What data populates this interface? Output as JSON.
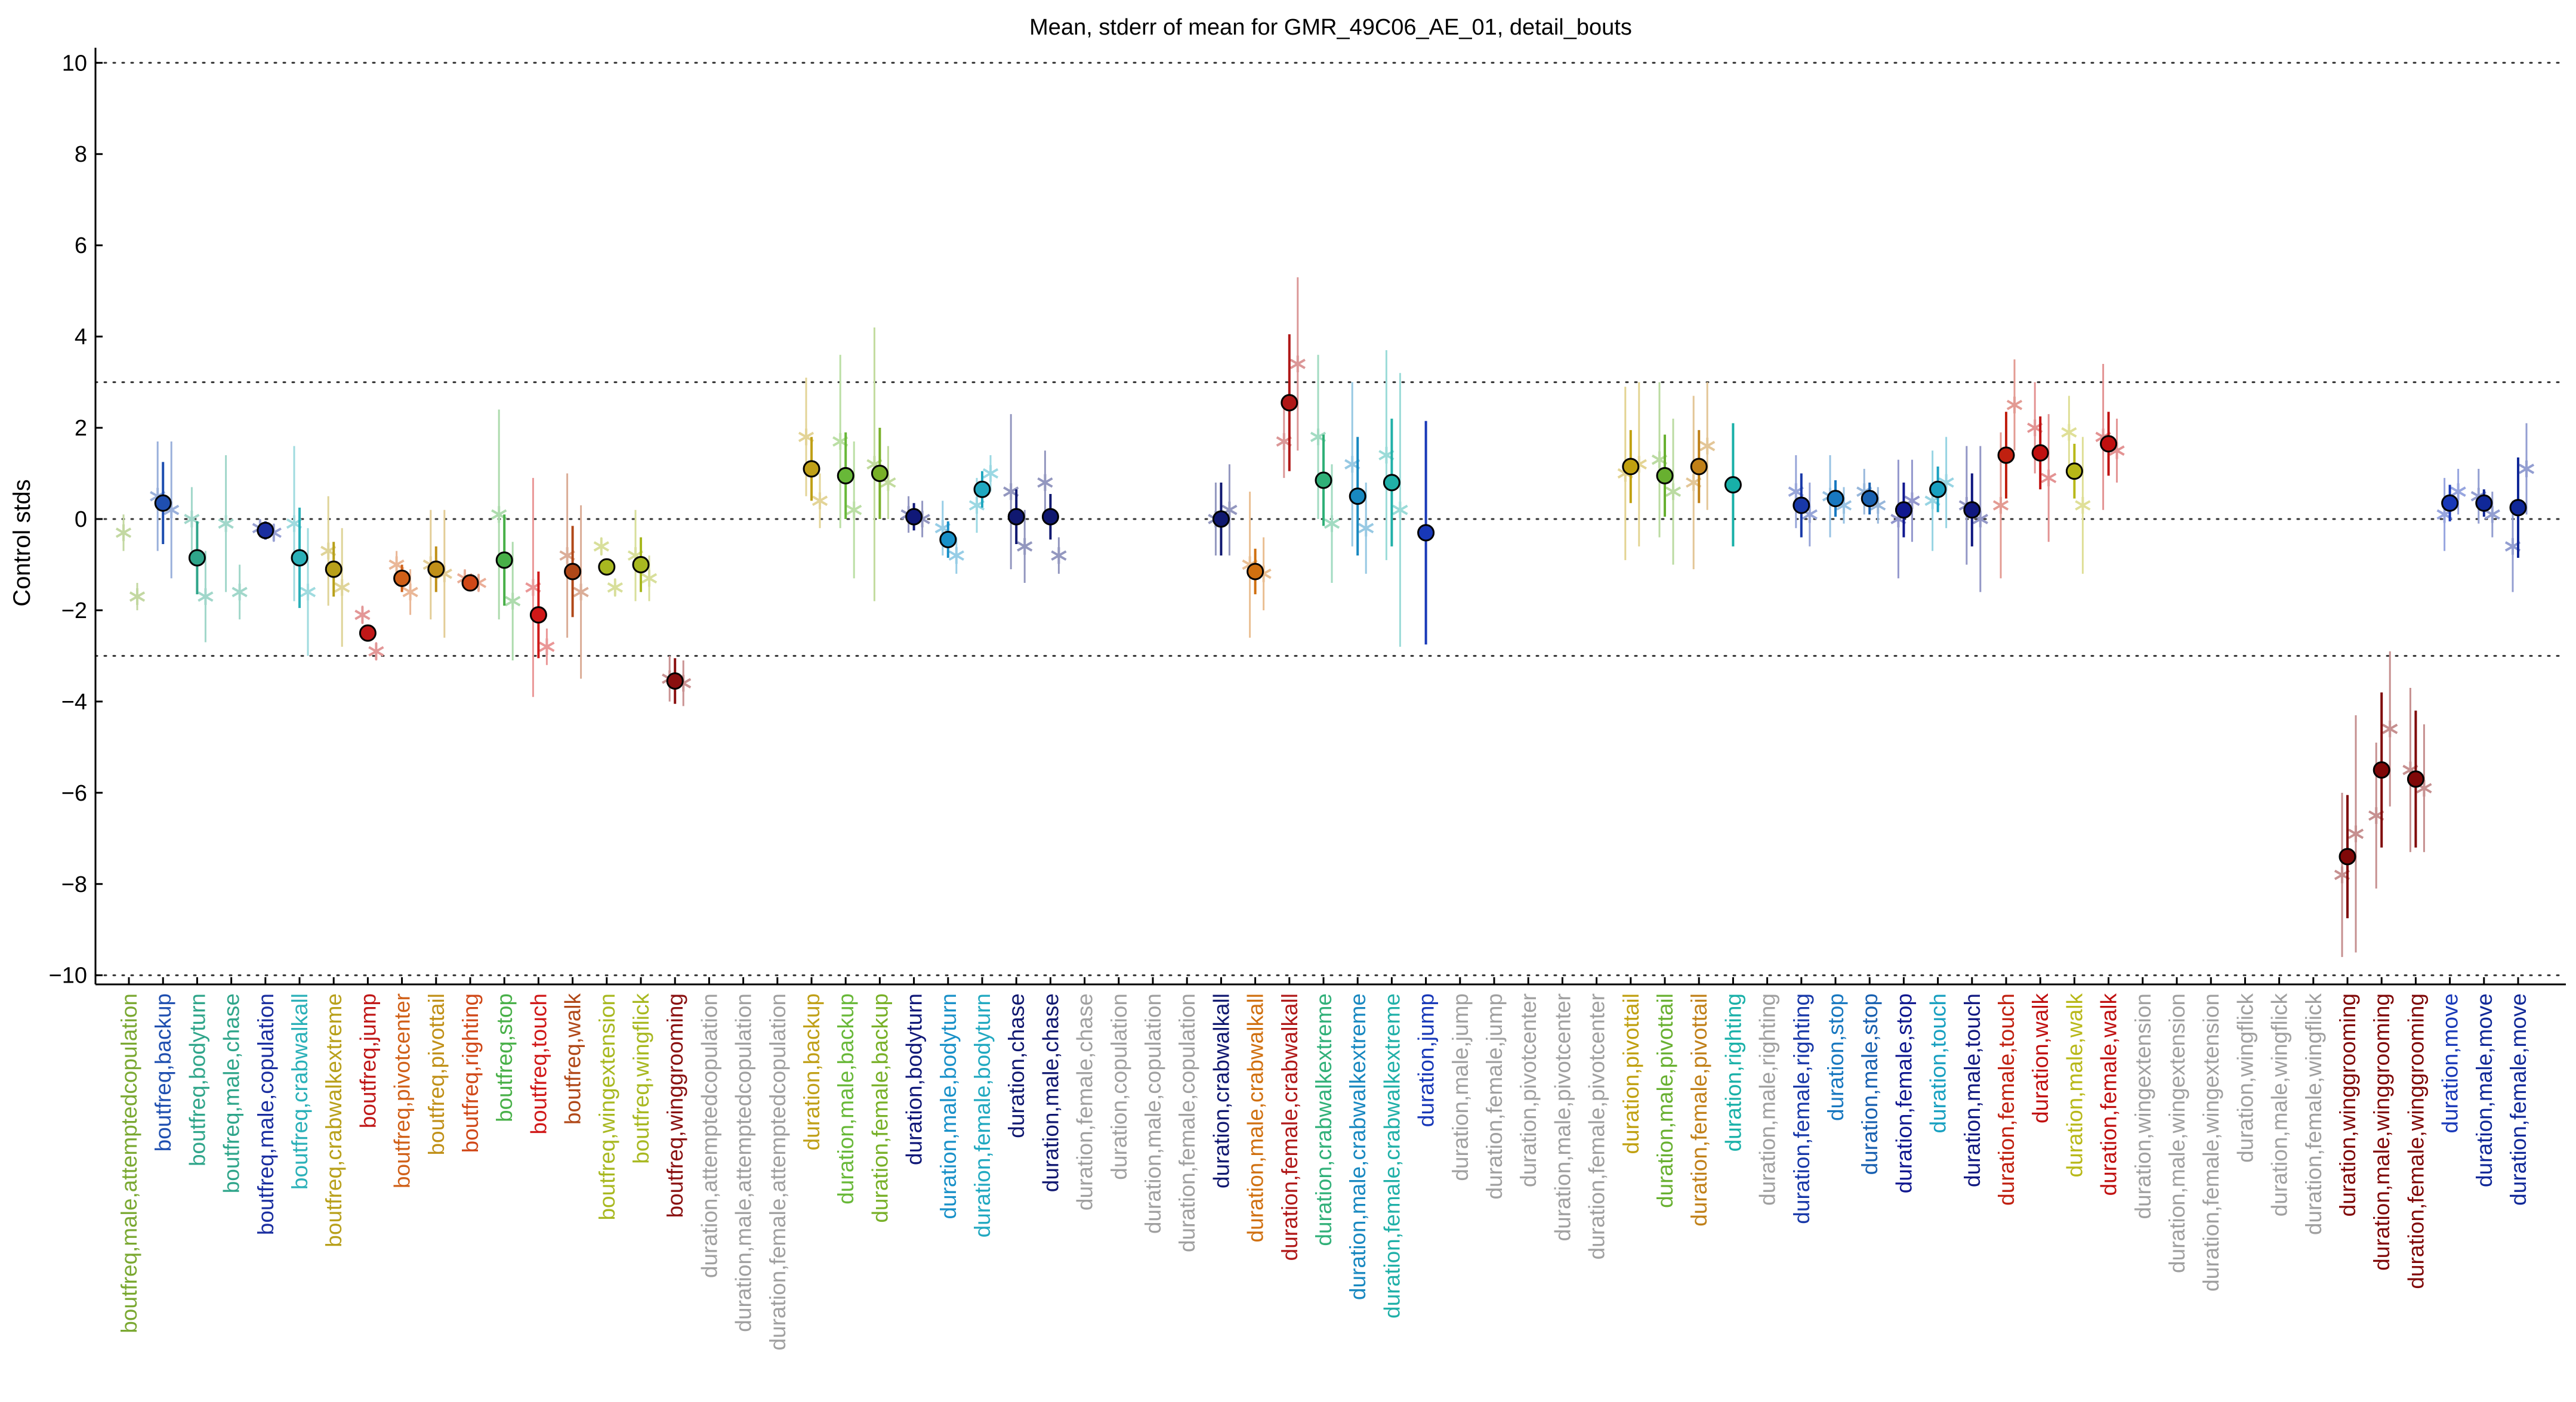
{
  "chart_data": {
    "type": "scatter",
    "title": "Mean, stderr of mean for GMR_49C06_AE_01, detail_bouts",
    "ylabel": "Control stds",
    "xlabel": "",
    "ylim": [
      -10.2,
      10.2
    ],
    "yticks": [
      -10,
      -8,
      -6,
      -4,
      -2,
      0,
      2,
      4,
      6,
      8,
      10
    ],
    "reference_lines": [
      -10,
      -3,
      0,
      3,
      10
    ],
    "grid": false,
    "legend": "none",
    "categories": [
      {
        "label": "boutfreq,male,attemptedcopulation",
        "color": "#7aa831",
        "mean": null,
        "sem": null,
        "marker": "star",
        "point": -0.3,
        "point_err": 0.4,
        "point2": -1.7,
        "point2_err": 0.3
      },
      {
        "label": "boutfreq,backup",
        "color": "#1f4fb0",
        "mean": 0.35,
        "sem": 0.9,
        "marker": "circle",
        "point": 0.5,
        "point_err": 1.2,
        "point2": 0.2,
        "point2_err": 1.5
      },
      {
        "label": "boutfreq,bodyturn",
        "color": "#2fa58a",
        "mean": -0.85,
        "sem": 0.8,
        "marker": "circle",
        "point": 0.0,
        "point_err": 0.7,
        "point2": -1.7,
        "point2_err": 1.0
      },
      {
        "label": "boutfreq,male,chase",
        "color": "#2fa58a",
        "mean": null,
        "sem": null,
        "marker": "star",
        "point": -0.1,
        "point_err": 1.5,
        "point2": -1.6,
        "point2_err": 0.6
      },
      {
        "label": "boutfreq,male,copulation",
        "color": "#1a2ea0",
        "mean": -0.25,
        "sem": 0.2,
        "marker": "circle",
        "point": -0.2,
        "point_err": 0.2,
        "point2": -0.3,
        "point2_err": 0.2
      },
      {
        "label": "boutfreq,crabwalkall",
        "color": "#2ab0b8",
        "mean": -0.85,
        "sem": 1.1,
        "marker": "circle",
        "point": -0.1,
        "point_err": 1.7,
        "point2": -1.6,
        "point2_err": 1.4
      },
      {
        "label": "boutfreq,crabwalkextreme",
        "color": "#b8a01a",
        "mean": -1.1,
        "sem": 0.6,
        "marker": "circle",
        "point": -0.7,
        "point_err": 1.2,
        "point2": -1.5,
        "point2_err": 1.3
      },
      {
        "label": "boutfreq,jump",
        "color": "#c01818",
        "mean": -2.5,
        "sem": 0.15,
        "marker": "circle",
        "point": -2.1,
        "point_err": 0.2,
        "point2": -2.9,
        "point2_err": 0.2
      },
      {
        "label": "boutfreq,pivotcenter",
        "color": "#d06018",
        "mean": -1.3,
        "sem": 0.3,
        "marker": "circle",
        "point": -1.0,
        "point_err": 0.3,
        "point2": -1.6,
        "point2_err": 0.5
      },
      {
        "label": "boutfreq,pivottail",
        "color": "#c09018",
        "mean": -1.1,
        "sem": 0.5,
        "marker": "circle",
        "point": -1.0,
        "point_err": 1.2,
        "point2": -1.2,
        "point2_err": 1.4
      },
      {
        "label": "boutfreq,righting",
        "color": "#d04818",
        "mean": -1.4,
        "sem": 0.15,
        "marker": "circle",
        "point": -1.3,
        "point_err": 0.2,
        "point2": -1.4,
        "point2_err": 0.2
      },
      {
        "label": "boutfreq,stop",
        "color": "#48b048",
        "mean": -0.9,
        "sem": 1.0,
        "marker": "circle",
        "point": 0.1,
        "point_err": 2.3,
        "point2": -1.8,
        "point2_err": 1.3
      },
      {
        "label": "boutfreq,touch",
        "color": "#d01818",
        "mean": -2.1,
        "sem": 0.95,
        "marker": "circle",
        "point": -1.5,
        "point_err": 2.4,
        "point2": -2.8,
        "point2_err": 0.4
      },
      {
        "label": "boutfreq,walk",
        "color": "#b04818",
        "mean": -1.15,
        "sem": 1.0,
        "marker": "circle",
        "point": -0.8,
        "point_err": 1.8,
        "point2": -1.6,
        "point2_err": 1.9
      },
      {
        "label": "boutfreq,wingextension",
        "color": "#a8b820",
        "mean": -1.05,
        "sem": 0.1,
        "marker": "circle",
        "point": -0.6,
        "point_err": 0.2,
        "point2": -1.5,
        "point2_err": 0.2
      },
      {
        "label": "boutfreq,wingflick",
        "color": "#a8b820",
        "mean": -1.0,
        "sem": 0.6,
        "marker": "circle",
        "point": -0.8,
        "point_err": 1.0,
        "point2": -1.3,
        "point2_err": 0.5
      },
      {
        "label": "boutfreq,winggrooming",
        "color": "#8a1010",
        "mean": -3.55,
        "sem": 0.5,
        "marker": "circle",
        "point": -3.5,
        "point_err": 0.5,
        "point2": -3.6,
        "point2_err": 0.5
      },
      {
        "label": "duration,attemptedcopulation",
        "color": "#a0a0a0",
        "mean": null,
        "sem": null
      },
      {
        "label": "duration,male,attemptedcopulation",
        "color": "#a0a0a0",
        "mean": null,
        "sem": null
      },
      {
        "label": "duration,female,attemptedcopulation",
        "color": "#a0a0a0",
        "mean": null,
        "sem": null
      },
      {
        "label": "duration,backup",
        "color": "#c0a018",
        "mean": 1.1,
        "sem": 0.7,
        "marker": "circle",
        "point": 1.8,
        "point_err": 1.3,
        "point2": 0.4,
        "point2_err": 0.6
      },
      {
        "label": "duration,male,backup",
        "color": "#68b838",
        "mean": 0.95,
        "sem": 0.95,
        "marker": "circle",
        "point": 1.7,
        "point_err": 1.9,
        "point2": 0.2,
        "point2_err": 1.5
      },
      {
        "label": "duration,female,backup",
        "color": "#78b028",
        "mean": 1.0,
        "sem": 1.0,
        "marker": "circle",
        "point": 1.2,
        "point_err": 3.0,
        "point2": 0.8,
        "point2_err": 0.8
      },
      {
        "label": "duration,bodyturn",
        "color": "#101878",
        "mean": 0.05,
        "sem": 0.3,
        "marker": "circle",
        "point": 0.1,
        "point_err": 0.4,
        "point2": 0.0,
        "point2_err": 0.4
      },
      {
        "label": "duration,male,bodyturn",
        "color": "#1890c8",
        "mean": -0.45,
        "sem": 0.4,
        "marker": "circle",
        "point": -0.2,
        "point_err": 0.6,
        "point2": -0.8,
        "point2_err": 0.4
      },
      {
        "label": "duration,female,bodyturn",
        "color": "#20a8c0",
        "mean": 0.65,
        "sem": 0.4,
        "marker": "circle",
        "point": 0.3,
        "point_err": 0.6,
        "point2": 1.0,
        "point2_err": 0.4
      },
      {
        "label": "duration,chase",
        "color": "#101870",
        "mean": 0.05,
        "sem": 0.6,
        "marker": "circle",
        "point": 0.6,
        "point_err": 1.7,
        "point2": -0.6,
        "point2_err": 0.8
      },
      {
        "label": "duration,male,chase",
        "color": "#101870",
        "mean": 0.05,
        "sem": 0.5,
        "marker": "circle",
        "point": 0.8,
        "point_err": 0.7,
        "point2": -0.8,
        "point2_err": 0.4
      },
      {
        "label": "duration,female,chase",
        "color": "#a0a0a0",
        "mean": null,
        "sem": null
      },
      {
        "label": "duration,copulation",
        "color": "#a0a0a0",
        "mean": null,
        "sem": null
      },
      {
        "label": "duration,male,copulation",
        "color": "#a0a0a0",
        "mean": null,
        "sem": null
      },
      {
        "label": "duration,female,copulation",
        "color": "#a0a0a0",
        "mean": null,
        "sem": null
      },
      {
        "label": "duration,crabwalkall",
        "color": "#101870",
        "mean": 0.0,
        "sem": 0.8,
        "marker": "circle",
        "point": 0.0,
        "point_err": 0.8,
        "point2": 0.2,
        "point2_err": 1.0
      },
      {
        "label": "duration,male,crabwalkall",
        "color": "#d07010",
        "mean": -1.15,
        "sem": 0.5,
        "marker": "circle",
        "point": -1.0,
        "point_err": 1.6,
        "point2": -1.2,
        "point2_err": 0.8
      },
      {
        "label": "duration,female,crabwalkall",
        "color": "#b01818",
        "mean": 2.55,
        "sem": 1.5,
        "marker": "circle",
        "point": 1.7,
        "point_err": 0.8,
        "point2": 3.4,
        "point2_err": 1.9
      },
      {
        "label": "duration,crabwalkextreme",
        "color": "#30b078",
        "mean": 0.85,
        "sem": 1.0,
        "marker": "circle",
        "point": 1.8,
        "point_err": 1.8,
        "point2": -0.1,
        "point2_err": 1.3
      },
      {
        "label": "duration,male,crabwalkextreme",
        "color": "#1888c0",
        "mean": 0.5,
        "sem": 1.3,
        "marker": "circle",
        "point": 1.2,
        "point_err": 1.8,
        "point2": -0.2,
        "point2_err": 1.0
      },
      {
        "label": "duration,female,crabwalkextreme",
        "color": "#20b0a8",
        "mean": 0.8,
        "sem": 1.4,
        "marker": "circle",
        "point": 1.4,
        "point_err": 2.3,
        "point2": 0.2,
        "point2_err": 3.0
      },
      {
        "label": "duration,jump",
        "color": "#1838b8",
        "mean": -0.3,
        "sem": 2.45,
        "marker": "circle",
        "point": null,
        "point_err": null,
        "point2": null,
        "point2_err": null
      },
      {
        "label": "duration,male,jump",
        "color": "#a0a0a0",
        "mean": null,
        "sem": null
      },
      {
        "label": "duration,female,jump",
        "color": "#a0a0a0",
        "mean": null,
        "sem": null
      },
      {
        "label": "duration,pivotcenter",
        "color": "#a0a0a0",
        "mean": null,
        "sem": null
      },
      {
        "label": "duration,male,pivotcenter",
        "color": "#a0a0a0",
        "mean": null,
        "sem": null
      },
      {
        "label": "duration,female,pivotcenter",
        "color": "#a0a0a0",
        "mean": null,
        "sem": null
      },
      {
        "label": "duration,pivottail",
        "color": "#c0a010",
        "mean": 1.15,
        "sem": 0.8,
        "marker": "circle",
        "point": 1.0,
        "point_err": 1.9,
        "point2": 1.2,
        "point2_err": 1.8
      },
      {
        "label": "duration,male,pivottail",
        "color": "#68b030",
        "mean": 0.95,
        "sem": 0.9,
        "marker": "circle",
        "point": 1.3,
        "point_err": 1.7,
        "point2": 0.6,
        "point2_err": 1.6
      },
      {
        "label": "duration,female,pivottail",
        "color": "#c08018",
        "mean": 1.15,
        "sem": 0.8,
        "marker": "circle",
        "point": 0.8,
        "point_err": 1.9,
        "point2": 1.6,
        "point2_err": 1.4
      },
      {
        "label": "duration,righting",
        "color": "#18b0a8",
        "mean": 0.75,
        "sem": 1.35,
        "marker": "circle",
        "point": null,
        "point_err": null,
        "point2": null,
        "point2_err": null
      },
      {
        "label": "duration,male,righting",
        "color": "#a0a0a0",
        "mean": null,
        "sem": null
      },
      {
        "label": "duration,female,righting",
        "color": "#1838a8",
        "mean": 0.3,
        "sem": 0.7,
        "marker": "circle",
        "point": 0.6,
        "point_err": 0.8,
        "point2": 0.1,
        "point2_err": 0.7
      },
      {
        "label": "duration,stop",
        "color": "#1878c0",
        "mean": 0.45,
        "sem": 0.4,
        "marker": "circle",
        "point": 0.5,
        "point_err": 0.9,
        "point2": 0.3,
        "point2_err": 0.4
      },
      {
        "label": "duration,male,stop",
        "color": "#1860b0",
        "mean": 0.45,
        "sem": 0.35,
        "marker": "circle",
        "point": 0.6,
        "point_err": 0.5,
        "point2": 0.3,
        "point2_err": 0.4
      },
      {
        "label": "duration,female,stop",
        "color": "#101890",
        "mean": 0.2,
        "sem": 0.6,
        "marker": "circle",
        "point": 0.0,
        "point_err": 1.3,
        "point2": 0.4,
        "point2_err": 0.9
      },
      {
        "label": "duration,touch",
        "color": "#18a0c0",
        "mean": 0.65,
        "sem": 0.5,
        "marker": "circle",
        "point": 0.4,
        "point_err": 1.1,
        "point2": 0.8,
        "point2_err": 1.0
      },
      {
        "label": "duration,male,touch",
        "color": "#101880",
        "mean": 0.2,
        "sem": 0.8,
        "marker": "circle",
        "point": 0.3,
        "point_err": 1.3,
        "point2": 0.0,
        "point2_err": 1.6
      },
      {
        "label": "duration,female,touch",
        "color": "#c02010",
        "mean": 1.4,
        "sem": 0.95,
        "marker": "circle",
        "point": 0.3,
        "point_err": 1.6,
        "point2": 2.5,
        "point2_err": 1.0
      },
      {
        "label": "duration,walk",
        "color": "#c01010",
        "mean": 1.45,
        "sem": 0.8,
        "marker": "circle",
        "point": 2.0,
        "point_err": 1.0,
        "point2": 0.9,
        "point2_err": 1.4
      },
      {
        "label": "duration,male,walk",
        "color": "#b8b818",
        "mean": 1.05,
        "sem": 0.6,
        "marker": "circle",
        "point": 1.9,
        "point_err": 0.8,
        "point2": 0.3,
        "point2_err": 1.5
      },
      {
        "label": "duration,female,walk",
        "color": "#c01010",
        "mean": 1.65,
        "sem": 0.7,
        "marker": "circle",
        "point": 1.8,
        "point_err": 1.6,
        "point2": 1.5,
        "point2_err": 0.7
      },
      {
        "label": "duration,wingextension",
        "color": "#a0a0a0",
        "mean": null,
        "sem": null
      },
      {
        "label": "duration,male,wingextension",
        "color": "#a0a0a0",
        "mean": null,
        "sem": null
      },
      {
        "label": "duration,female,wingextension",
        "color": "#a0a0a0",
        "mean": null,
        "sem": null
      },
      {
        "label": "duration,wingflick",
        "color": "#a0a0a0",
        "mean": null,
        "sem": null
      },
      {
        "label": "duration,male,wingflick",
        "color": "#a0a0a0",
        "mean": null,
        "sem": null
      },
      {
        "label": "duration,female,wingflick",
        "color": "#a0a0a0",
        "mean": null,
        "sem": null
      },
      {
        "label": "duration,winggrooming",
        "color": "#800808",
        "mean": -7.4,
        "sem": 1.35,
        "marker": "circle",
        "point": -7.8,
        "point_err": 1.8,
        "point2": -6.9,
        "point2_err": 2.6
      },
      {
        "label": "duration,male,winggrooming",
        "color": "#800808",
        "mean": -5.5,
        "sem": 1.7,
        "marker": "circle",
        "point": -6.5,
        "point_err": 1.6,
        "point2": -4.6,
        "point2_err": 1.7
      },
      {
        "label": "duration,female,winggrooming",
        "color": "#800808",
        "mean": -5.7,
        "sem": 1.5,
        "marker": "circle",
        "point": -5.5,
        "point_err": 1.8,
        "point2": -5.9,
        "point2_err": 1.4
      },
      {
        "label": "duration,move",
        "color": "#1838b8",
        "mean": 0.35,
        "sem": 0.4,
        "marker": "circle",
        "point": 0.1,
        "point_err": 0.8,
        "point2": 0.6,
        "point2_err": 0.5
      },
      {
        "label": "duration,male,move",
        "color": "#102898",
        "mean": 0.35,
        "sem": 0.3,
        "marker": "circle",
        "point": 0.5,
        "point_err": 0.6,
        "point2": 0.1,
        "point2_err": 0.5
      },
      {
        "label": "duration,female,move",
        "color": "#102898",
        "mean": 0.25,
        "sem": 1.1,
        "marker": "circle",
        "point": -0.6,
        "point_err": 1.0,
        "point2": 1.1,
        "point2_err": 1.0
      }
    ]
  }
}
